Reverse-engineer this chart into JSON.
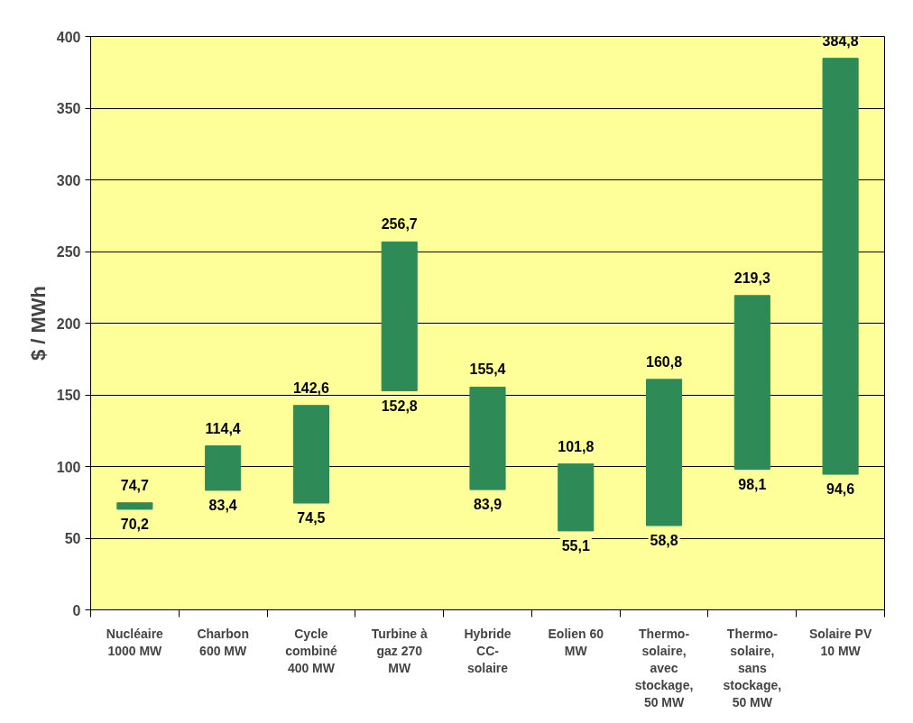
{
  "chart_data": {
    "type": "bar",
    "ylabel": "$ / MWh",
    "categories": [
      "Nucléaire\n1000 MW",
      "Charbon\n600 MW",
      "Cycle\ncombiné\n400 MW",
      "Turbine à\ngaz 270\nMW",
      "Hybride\nCC-\nsolaire",
      "Eolien 60\nMW",
      "Thermo-\nsolaire,\navec\nstockage,\n50 MW",
      "Thermo-\nsolaire,\nsans\nstockage,\n50 MW",
      "Solaire PV\n10 MW"
    ],
    "base": [
      70.2,
      83.4,
      74.5,
      152.8,
      83.9,
      55.1,
      58.8,
      98.1,
      94.6
    ],
    "values": [
      4.5,
      31.0,
      68.1,
      103.9,
      71.5,
      46.7,
      102.0,
      121.2,
      290.2
    ],
    "color": "#2e8b57",
    "ylim": [
      0,
      400
    ],
    "yticks": [
      0,
      50,
      100,
      150,
      200,
      250,
      300,
      350,
      400
    ],
    "grid": "y",
    "annotations": [
      {
        "text": "74,7",
        "x": "Nucléaire\n1000 MW",
        "y": 74.7
      },
      {
        "text": "70,2",
        "x": "Nucléaire\n1000 MW",
        "y": 70.2
      },
      {
        "text": "114,4",
        "x": "Charbon\n600 MW",
        "y": 114.4
      },
      {
        "text": "83,4",
        "x": "Charbon\n600 MW",
        "y": 83.4
      },
      {
        "text": "142,6",
        "x": "Cycle\ncombiné\n400 MW",
        "y": 142.6
      },
      {
        "text": "74,5",
        "x": "Cycle\ncombiné\n400 MW",
        "y": 74.5
      },
      {
        "text": "256,7",
        "x": "Turbine à\ngaz 270\nMW",
        "y": 256.7
      },
      {
        "text": "152,8",
        "x": "Turbine à\ngaz 270\nMW",
        "y": 152.8
      },
      {
        "text": "155,4",
        "x": "Hybride\nCC-\nsolaire",
        "y": 155.4
      },
      {
        "text": "83,9",
        "x": "Hybride\nCC-\nsolaire",
        "y": 83.9
      },
      {
        "text": "101,8",
        "x": "Eolien 60\nMW",
        "y": 101.8
      },
      {
        "text": "55,1",
        "x": "Eolien 60\nMW",
        "y": 55.1
      },
      {
        "text": "160,8",
        "x": "Thermo-\nsolaire,\navec\nstockage,\n50 MW",
        "y": 160.8
      },
      {
        "text": "58,8",
        "x": "Thermo-\nsolaire,\navec\nstockage,\n50 MW",
        "y": 58.8
      },
      {
        "text": "219,3",
        "x": "Thermo-\nsolaire,\nsans\nstockage,\n50 MW",
        "y": 219.3
      },
      {
        "text": "98,1",
        "x": "Thermo-\nsolaire,\nsans\nstockage,\n50 MW",
        "y": 98.1
      },
      {
        "text": "384,8",
        "x": "Solaire PV\n10 MW",
        "y": 384.8
      },
      {
        "text": "94,6",
        "x": "Solaire PV\n10 MW",
        "y": 94.6
      }
    ]
  }
}
